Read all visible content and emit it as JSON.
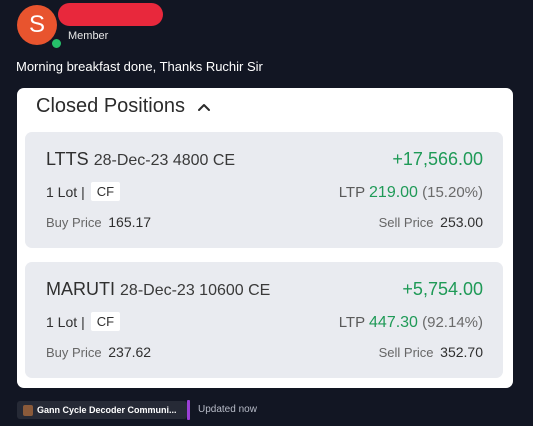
{
  "header": {
    "avatar_letter": "S",
    "role": "Member",
    "message": "Morning breakfast done, Thanks Ruchir Sir"
  },
  "closed_positions": {
    "title": "Closed Positions",
    "items": [
      {
        "symbol": "LTTS",
        "contract": "28-Dec-23 4800 CE",
        "pnl": "+17,566.00",
        "lot_text": "1 Lot",
        "separator": "|",
        "badge": "CF",
        "ltp_label": "LTP",
        "ltp_value": "219.00",
        "ltp_change": "(15.20%)",
        "buy_label": "Buy Price",
        "buy_value": "165.17",
        "sell_label": "Sell Price",
        "sell_value": "253.00"
      },
      {
        "symbol": "MARUTI",
        "contract": "28-Dec-23 10600 CE",
        "pnl": "+5,754.00",
        "lot_text": "1 Lot",
        "separator": "|",
        "badge": "CF",
        "ltp_label": "LTP",
        "ltp_value": "447.30",
        "ltp_change": "(92.14%)",
        "buy_label": "Buy Price",
        "buy_value": "237.62",
        "sell_label": "Sell Price",
        "sell_value": "352.70"
      }
    ]
  },
  "footer": {
    "attachment_label": "Gann Cycle Decoder Communi...",
    "status": "Updated now"
  },
  "colors": {
    "background": "#121623",
    "avatar": "#e8542e",
    "online": "#25c06a",
    "profit_green": "#1f9a57",
    "accent_purple": "#9b3fd6"
  }
}
